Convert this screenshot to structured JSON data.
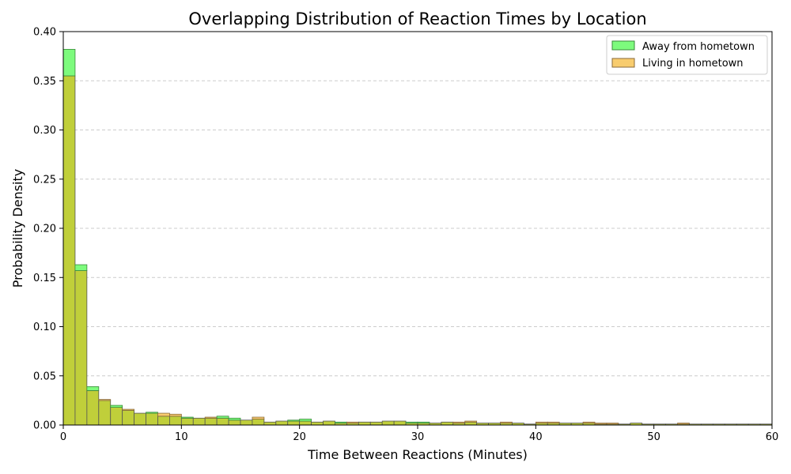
{
  "chart_data": {
    "type": "bar",
    "title": "Overlapping Distribution of Reaction Times by Location",
    "xlabel": "Time Between Reactions (Minutes)",
    "ylabel": "Probability Density",
    "xlim": [
      0,
      60
    ],
    "ylim": [
      0,
      0.4
    ],
    "bin_width": 1.0,
    "x_ticks": [
      "0",
      "10",
      "20",
      "30",
      "40",
      "50",
      "60"
    ],
    "y_ticks": [
      "0.00",
      "0.05",
      "0.10",
      "0.15",
      "0.20",
      "0.25",
      "0.30",
      "0.35",
      "0.40"
    ],
    "grid": "y-dashed",
    "legend_position": "top-right",
    "overlap_color": "#c0cf3a",
    "series": [
      {
        "name": "Away from hometown",
        "color": "#7dfb7d",
        "edge": "#3a8a3a",
        "values": [
          0.382,
          0.163,
          0.039,
          0.025,
          0.02,
          0.015,
          0.012,
          0.013,
          0.009,
          0.009,
          0.008,
          0.007,
          0.007,
          0.009,
          0.007,
          0.005,
          0.006,
          0.003,
          0.004,
          0.005,
          0.006,
          0.003,
          0.004,
          0.003,
          0.002,
          0.003,
          0.003,
          0.004,
          0.004,
          0.003,
          0.003,
          0.002,
          0.003,
          0.002,
          0.003,
          0.002,
          0.002,
          0.002,
          0.002,
          0.001,
          0.002,
          0.002,
          0.002,
          0.002,
          0.002,
          0.001,
          0.001,
          0.001,
          0.002,
          0.001,
          0.001,
          0.001,
          0.001,
          0.001,
          0.001,
          0.001,
          0.001,
          0.001,
          0.001,
          0.001
        ]
      },
      {
        "name": "Living in hometown",
        "color": "#f8cc6e",
        "edge": "#8a6a3a",
        "values": [
          0.355,
          0.157,
          0.035,
          0.026,
          0.018,
          0.016,
          0.012,
          0.012,
          0.012,
          0.011,
          0.007,
          0.007,
          0.008,
          0.007,
          0.005,
          0.005,
          0.008,
          0.003,
          0.004,
          0.004,
          0.004,
          0.003,
          0.004,
          0.002,
          0.003,
          0.003,
          0.003,
          0.004,
          0.004,
          0.002,
          0.002,
          0.002,
          0.003,
          0.003,
          0.004,
          0.002,
          0.002,
          0.003,
          0.002,
          0.001,
          0.003,
          0.003,
          0.002,
          0.002,
          0.003,
          0.002,
          0.002,
          0.001,
          0.002,
          0.001,
          0.001,
          0.001,
          0.002,
          0.001,
          0.001,
          0.001,
          0.001,
          0.001,
          0.001,
          0.001
        ]
      }
    ]
  }
}
